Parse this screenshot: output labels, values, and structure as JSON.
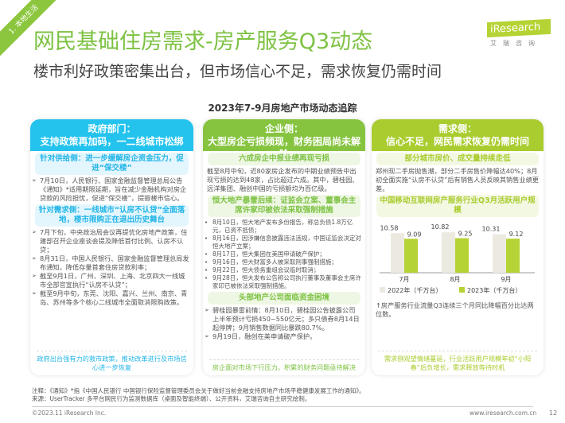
{
  "corner": "1. 本地生活",
  "title": "网民基础住房需求-房产服务Q3动态",
  "subtitle": "楼市利好政策密集出台，但市场信心不足，需求恢复仍需时间",
  "logo": {
    "brand": "iResearch",
    "cn": "艾瑞咨询"
  },
  "section_title": "2023年7-9月房地产市场动态追踪",
  "gov": {
    "title1": "政府部门：",
    "title2": "支持政策再加码，一二线城市松绑",
    "sub1": "针对供给侧：进一步缓解房企资金压力，促进“保交楼”",
    "item1": "7月10日，人民银行、国家金融监督管理总局公告《通知》*适用期限延期，旨在减少金融机构对房企贷款的风险担忧，促进“保交楼”，提振楼市信心。",
    "sub2": "针对需求侧：一线城市“认房不认贷”全面落地，楼市限购正在退出历史舞台",
    "items": [
      "7月下旬，中央政治局会议再提优化房地产政策，住建部召开企业座谈会提及降低首付比例、认房不认贷；",
      "8月31日，中国人民银行、国家金融监督管理总局发布通知，降低存量首套住房贷款利率；",
      "截至9月1日，广州、深圳、上海、北京四大一线城市全部官宣执行“认房不认贷”；",
      "截至9月中旬，东莞、沈阳、嘉兴、兰州、南京、青岛、苏州等多个核心二线城市全面取消限购政策。"
    ],
    "footer": "政府出台强有力的救市政策，推动改革进行及市场信心进一步恢复"
  },
  "ent": {
    "title1": "企业侧：",
    "title2": "大型房企亏损频现，财务困局尚未解除",
    "sub1": "六成房企中报业绩再现亏损",
    "text1": "截至8月中旬，近80家房企发布的中期业绩预告中出现亏损的达到48家，占比超过六成。其中，碧桂园、远洋集团、融创中国的亏损额均为百亿级。",
    "sub2": "恒大地产暴雷后续：证监会立案、董事会主席许家印被依法采取强制措施",
    "items": [
      "8月10日，恒大地产发布多份报告，称总负债1.8万亿元，已资不抵债；",
      "8月16日，因涉嫌信息披露违法违规，中国证监会决定对恒大地产立案；",
      "8月17日，恒大集团在美国申请破产保护；",
      "9月16日，恒大财富多人被采取刑事强制措施；",
      "9月22日，恒大债务重组会议临时取消；",
      "9月28日，恒大发布公告称公司执行董事及董事会主席许家印已被依法采取强制措施。"
    ],
    "sub3": "头部地产公司面临资金困境",
    "items2": [
      "碧桂园暴雷前情：8月10日，碧桂园公告披露公司上半年预计亏损450~550亿元；多只债券8月14日起停牌；9月销售数据同比暴跌80.7%。",
      "9月19日，融创在美申请破产保护。"
    ],
    "footer": "房企面对市场下行压力，积累的财务问题亟待解决"
  },
  "dem": {
    "title1": "需求侧：",
    "title2": "信心不足，网民需求恢复仍需时间",
    "sub1": "部分城市房价、成交量持续走低",
    "text1": "郑州现二手房抛售潮，部分二手房售价降幅达40%；8月初全面实施“认房不认贷”后有销售人员反映其销售业绩更差。",
    "sub2": "中国移动互联网房产服务行业Q3月活跃用户规模",
    "note": "↑房产服务行业流量Q3连续三个月同比降幅百分比达两位数。",
    "footer": "需求侧观望情绪蔓延，行业活跃用户规模年初“小阳春”后负增长，需求释放等待时机"
  },
  "chart_data": {
    "type": "bar",
    "categories": [
      "7月",
      "8月",
      "9月"
    ],
    "series": [
      {
        "name": "2022年（千万台）",
        "values": [
          10.58,
          10.82,
          10.31
        ],
        "color": "#ece9e0"
      },
      {
        "name": "2023年（千万台）",
        "values": [
          9.09,
          9.25,
          9.12
        ],
        "color": "#b5d334"
      }
    ],
    "ylim": [
      0,
      11.5
    ]
  },
  "notes": {
    "line1": "注释：《通知》*指《中国人民银行 中国银行保险监督管理委员会关于做好当前金融支持房地产市场平稳健康发展工作的通知》。",
    "line2": "来源：UserTracker 多平台网民行为监测数据库（桌面及智能终端）、公开资料，艾瑞咨询自主研究绘制。"
  },
  "footer": {
    "copy": "©2023.11 iResearch Inc.",
    "url": "www.iresearch.com.cn",
    "page": "12"
  }
}
